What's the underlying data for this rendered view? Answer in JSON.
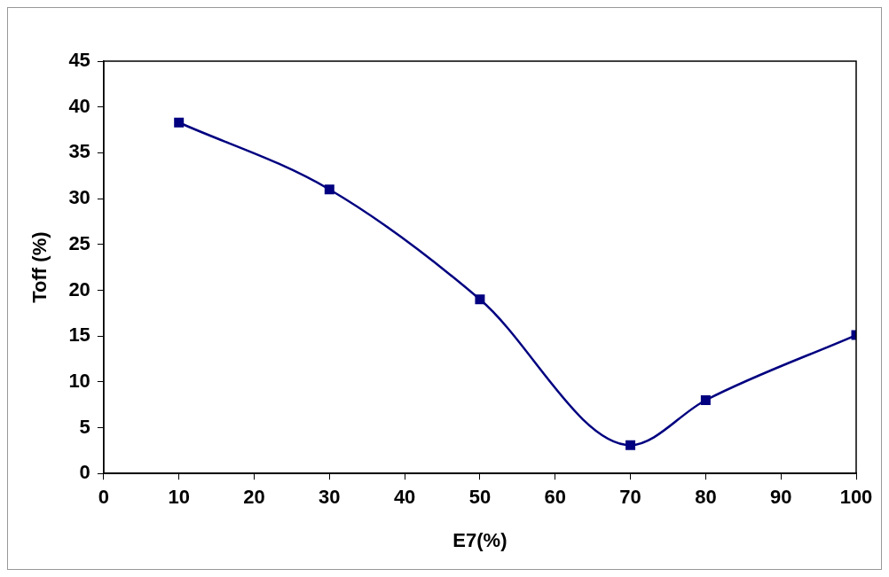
{
  "chart_data": {
    "type": "line",
    "xlabel": "E7(%)",
    "ylabel": "Toff (%)",
    "x": [
      10,
      30,
      50,
      70,
      80,
      100
    ],
    "series": [
      {
        "color": "#000080",
        "values": [
          38.3,
          31.0,
          19.0,
          3.1,
          8.0,
          15.1
        ]
      }
    ],
    "xlim": [
      0,
      100
    ],
    "xticks": [
      0,
      10,
      20,
      30,
      40,
      50,
      60,
      70,
      80,
      90,
      100
    ],
    "ylim": [
      0,
      45
    ],
    "yticks": [
      0,
      5,
      10,
      15,
      20,
      25,
      30,
      35,
      40,
      45
    ],
    "grid": false,
    "legend": false,
    "marker": "square",
    "line_style": "solid"
  }
}
